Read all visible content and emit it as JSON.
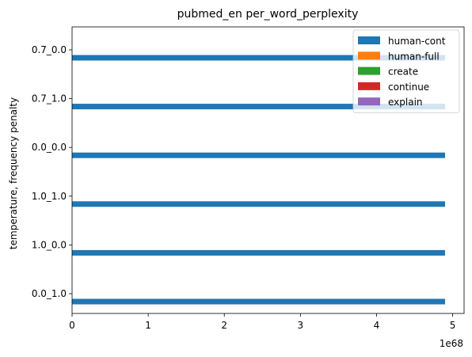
{
  "chart_data": {
    "type": "bar",
    "orientation": "horizontal",
    "title": "pubmed_en per_word_perplexity",
    "ylabel": "temperature, frequency penalty",
    "xlabel": "",
    "x_offset_label": "1e68",
    "categories": [
      "0.0_1.0",
      "1.0_0.0",
      "1.0_1.0",
      "0.0_0.0",
      "0.7_1.0",
      "0.7_0.0"
    ],
    "xlim": [
      0,
      5.15
    ],
    "xticks": [
      0,
      1,
      2,
      3,
      4,
      5
    ],
    "xtick_labels": [
      "0",
      "1",
      "2",
      "3",
      "4",
      "5"
    ],
    "grid": false,
    "legend_position": "top-right",
    "series": [
      {
        "name": "human-cont",
        "color": "#1f77b4",
        "values": [
          4.9,
          4.9,
          4.9,
          4.9,
          4.9,
          4.9
        ]
      },
      {
        "name": "human-full",
        "color": "#ff7f0e",
        "values": [
          0,
          0,
          0,
          0,
          0,
          0
        ]
      },
      {
        "name": "create",
        "color": "#2ca02c",
        "values": [
          0,
          0,
          0,
          0,
          0,
          0
        ]
      },
      {
        "name": "continue",
        "color": "#d62728",
        "values": [
          0,
          0,
          0,
          0,
          0,
          0
        ]
      },
      {
        "name": "explain",
        "color": "#9467bd",
        "values": [
          0,
          0,
          0,
          0,
          0,
          0
        ]
      }
    ]
  }
}
